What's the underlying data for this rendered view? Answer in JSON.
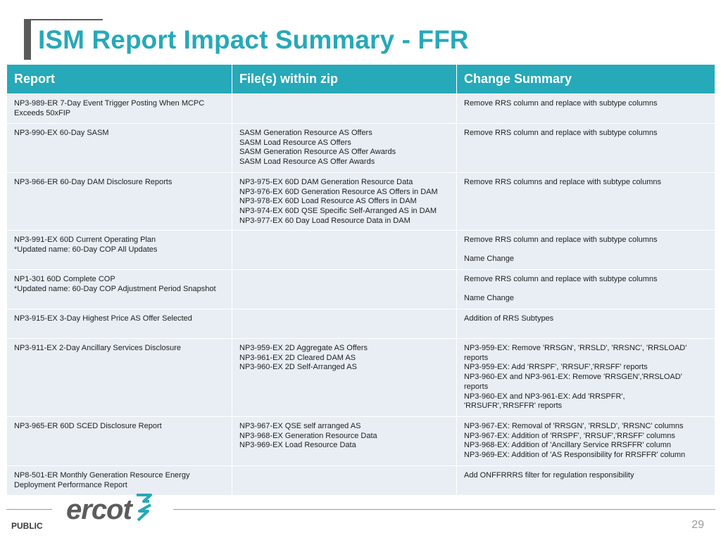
{
  "header": {
    "title": "ISM Report Impact Summary - FFR"
  },
  "table": {
    "columns": [
      "Report",
      "File(s) within zip",
      "Change Summary"
    ],
    "rows": [
      {
        "report": [
          "NP3-989-ER 7-Day Event Trigger Posting When MCPC",
          "Exceeds 50xFIP"
        ],
        "files": [],
        "summary": [
          "Remove RRS column and replace with subtype columns"
        ]
      },
      {
        "report": [
          "NP3-990-EX 60-Day SASM"
        ],
        "files": [
          "SASM Generation Resource AS Offers",
          "SASM Load Resource AS Offers",
          "SASM Generation Resource AS Offer Awards",
          "SASM Load Resource AS Offer Awards"
        ],
        "summary": [
          "Remove RRS column and replace with subtype columns"
        ]
      },
      {
        "report": [
          "NP3-966-ER 60-Day DAM Disclosure Reports"
        ],
        "files": [
          "NP3-975-EX 60D DAM Generation Resource Data",
          "NP3-976-EX 60D Generation Resource AS Offers in DAM",
          "NP3-978-EX 60D Load Resource AS Offers in DAM",
          "NP3-974-EX 60D QSE Specific Self-Arranged AS in DAM",
          "NP3-977-EX 60 Day Load Resource Data in DAM"
        ],
        "summary": [
          "Remove RRS columns and replace with subtype columns"
        ]
      },
      {
        "report": [
          "NP3-991-EX 60D Current Operating Plan",
          "*Updated name: 60-Day COP All Updates"
        ],
        "files": [],
        "summary": [
          "Remove RRS column and replace with subtype columns",
          "",
          "Name Change"
        ]
      },
      {
        "report": [
          "NP1-301 60D Complete COP",
          "*Updated name: 60-Day COP Adjustment Period Snapshot"
        ],
        "files": [],
        "summary": [
          "Remove RRS column and replace with subtype columns",
          "",
          "Name Change"
        ]
      },
      {
        "report": [
          "NP3-915-EX 3-Day Highest Price AS Offer Selected"
        ],
        "files": [],
        "summary": [
          "Addition of RRS Subtypes"
        ]
      },
      {
        "report": [
          "NP3-911-EX 2-Day Ancillary Services Disclosure"
        ],
        "files": [
          "NP3-959-EX 2D Aggregate AS Offers",
          "NP3-961-EX 2D Cleared DAM AS",
          "NP3-960-EX 2D Self-Arranged AS"
        ],
        "summary": [
          "NP3-959-EX: Remove 'RRSGN', 'RRSLD', 'RRSNC', 'RRSLOAD'",
          "reports",
          "NP3-959-EX: Add 'RRSPF', 'RRSUF','RRSFF' reports",
          "NP3-960-EX and NP3-961-EX: Remove 'RRSGEN','RRSLOAD'",
          "reports",
          "NP3-960-EX and NP3-961-EX: Add 'RRSPFR',",
          "'RRSUFR','RRSFFR' reports"
        ]
      },
      {
        "report": [
          "NP3-965-ER 60D SCED Disclosure Report"
        ],
        "files": [
          "NP3-967-EX QSE self arranged AS",
          "NP3-968-EX Generation Resource Data",
          "NP3-969-EX Load Resource Data"
        ],
        "summary": [
          "NP3-967-EX: Removal of 'RRSGN', 'RRSLD', 'RRSNC' columns",
          "NP3-967-EX: Addition of 'RRSPF', 'RRSUF','RRSFF' columns",
          "NP3-968-EX: Addition of 'Ancillary Service RRSFFR' column",
          "NP3-969-EX: Addition of 'AS Responsibility for RRSFFR' column"
        ]
      },
      {
        "report": [
          "NP8-501-ER Monthly Generation Resource Energy",
          "Deployment Performance Report"
        ],
        "files": [],
        "summary": [
          "Add ONFFRRRS filter for regulation responsibility"
        ]
      }
    ]
  },
  "footer": {
    "logo_text": "ercot",
    "classification": "PUBLIC",
    "page_number": "29"
  },
  "colors": {
    "accent": "#26a9b9",
    "row_bg": "#e8eef4",
    "title_bar": "#5a5a5a"
  }
}
